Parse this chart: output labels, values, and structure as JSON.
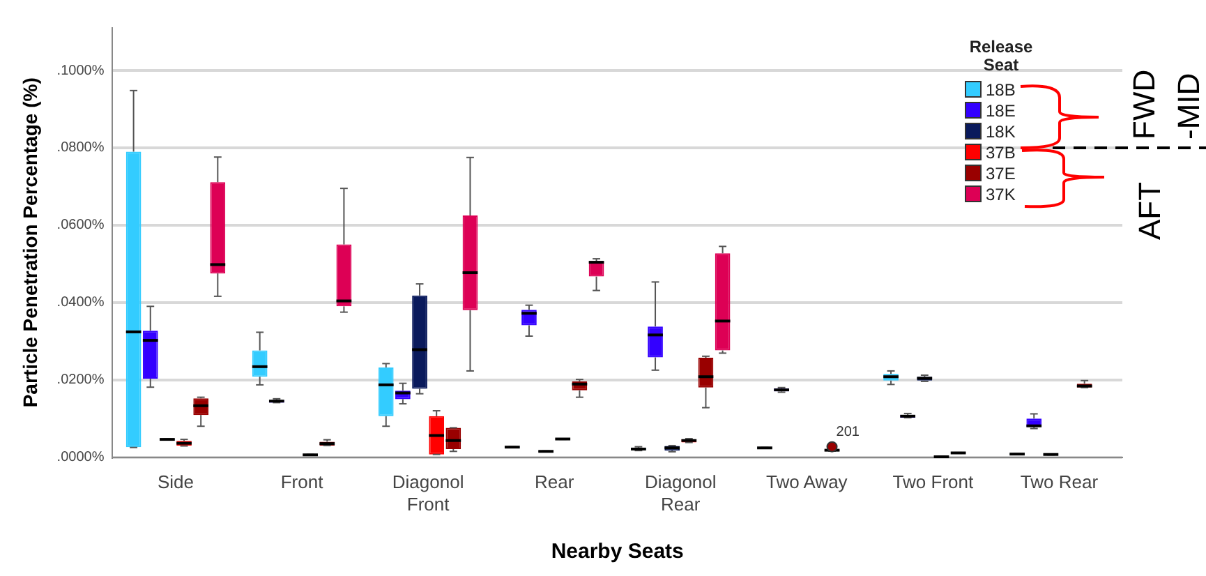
{
  "chart_data": {
    "type": "box",
    "xlabel": "Nearby Seats",
    "ylabel": "Particle Penetration Percentage (%)",
    "legend_title": "Release Seat",
    "legend": "top right",
    "grid": "y",
    "categories": [
      "Side",
      "Front",
      "Diagonol Front",
      "Rear",
      "Diagonol Rear",
      "Two Away",
      "Two Front",
      "Two Rear"
    ],
    "ylim": [
      0,
      0.111
    ],
    "yticks": [
      {
        "value": 0,
        "label": ".0000%"
      },
      {
        "value": 0.02,
        "label": ".0200%"
      },
      {
        "value": 0.04,
        "label": ".0400%"
      },
      {
        "value": 0.06,
        "label": ".0600%"
      },
      {
        "value": 0.08,
        "label": ".0800%"
      },
      {
        "value": 0.1,
        "label": ".1000%"
      }
    ],
    "series": [
      {
        "name": "18B",
        "color": "#33ccff",
        "boxes": [
          {
            "low": 0.0025,
            "q1": 0.0026,
            "median": 0.0324,
            "q3": 0.079,
            "high": 0.0948
          },
          {
            "low": 0.0187,
            "q1": 0.0208,
            "median": 0.0234,
            "q3": 0.0276,
            "high": 0.0323
          },
          {
            "low": 0.008,
            "q1": 0.0106,
            "median": 0.0187,
            "q3": 0.0232,
            "high": 0.0242
          },
          {
            "low": 0.0025,
            "q1": 0.0025,
            "median": 0.0026,
            "q3": 0.0027,
            "high": 0.0027
          },
          {
            "low": 0.0017,
            "q1": 0.0018,
            "median": 0.0021,
            "q3": 0.0024,
            "high": 0.0027
          },
          {
            "low": 0.0023,
            "q1": 0.0023,
            "median": 0.0024,
            "q3": 0.0025,
            "high": 0.0025
          },
          {
            "low": 0.0188,
            "q1": 0.0198,
            "median": 0.0208,
            "q3": 0.0215,
            "high": 0.0223
          },
          {
            "low": 0.0007,
            "q1": 0.0007,
            "median": 0.0008,
            "q3": 0.0009,
            "high": 0.0009
          }
        ]
      },
      {
        "name": "18E",
        "color": "#3300ff",
        "boxes": [
          {
            "low": 0.0181,
            "q1": 0.0203,
            "median": 0.0302,
            "q3": 0.0327,
            "high": 0.039
          },
          {
            "low": 0.0141,
            "q1": 0.0141,
            "median": 0.0145,
            "q3": 0.0147,
            "high": 0.0151
          },
          {
            "low": 0.0138,
            "q1": 0.015,
            "median": 0.0166,
            "q3": 0.0172,
            "high": 0.0191
          },
          {
            "low": 0.0313,
            "q1": 0.0341,
            "median": 0.0372,
            "q3": 0.0381,
            "high": 0.0393
          },
          {
            "low": 0.0225,
            "q1": 0.0258,
            "median": 0.0316,
            "q3": 0.0338,
            "high": 0.0453
          },
          {
            "low": 0.0168,
            "q1": 0.017,
            "median": 0.0174,
            "q3": 0.0178,
            "high": 0.018
          },
          {
            "low": 0.0102,
            "q1": 0.0102,
            "median": 0.0106,
            "q3": 0.0109,
            "high": 0.0113
          },
          {
            "low": 0.0074,
            "q1": 0.0078,
            "median": 0.0081,
            "q3": 0.01,
            "high": 0.0112
          }
        ]
      },
      {
        "name": "18K",
        "color": "#0a1a5c",
        "boxes": [
          {
            "low": 0.0045,
            "q1": 0.0045,
            "median": 0.0046,
            "q3": 0.0047,
            "high": 0.0047
          },
          null,
          {
            "low": 0.0164,
            "q1": 0.0177,
            "median": 0.0278,
            "q3": 0.0418,
            "high": 0.0448
          },
          {
            "low": 0.0014,
            "q1": 0.0014,
            "median": 0.0015,
            "q3": 0.0016,
            "high": 0.0016
          },
          {
            "low": 0.0014,
            "q1": 0.0017,
            "median": 0.0024,
            "q3": 0.0029,
            "high": 0.003
          },
          null,
          {
            "low": 0.0196,
            "q1": 0.0198,
            "median": 0.0204,
            "q3": 0.0208,
            "high": 0.0212
          },
          {
            "low": 0.0006,
            "q1": 0.0006,
            "median": 0.0007,
            "q3": 0.0008,
            "high": 0.0008
          }
        ]
      },
      {
        "name": "37B",
        "color": "#ff0000",
        "boxes": [
          {
            "low": 0.0029,
            "q1": 0.003,
            "median": 0.0036,
            "q3": 0.0042,
            "high": 0.0046
          },
          {
            "low": 0.0005,
            "q1": 0.0005,
            "median": 0.0006,
            "q3": 0.0007,
            "high": 0.0007
          },
          {
            "low": 0.0007,
            "q1": 0.0007,
            "median": 0.0056,
            "q3": 0.0106,
            "high": 0.012
          },
          {
            "low": 0.0046,
            "q1": 0.0046,
            "median": 0.0047,
            "q3": 0.0048,
            "high": 0.0048
          },
          {
            "low": 0.0038,
            "q1": 0.0038,
            "median": 0.0043,
            "q3": 0.0046,
            "high": 0.0048
          },
          null,
          {
            "low": 0.0001,
            "q1": 0.0001,
            "median": 0.0001,
            "q3": 0.0002,
            "high": 0.0002
          },
          null
        ]
      },
      {
        "name": "37E",
        "color": "#990000",
        "boxes": [
          {
            "low": 0.008,
            "q1": 0.0109,
            "median": 0.0133,
            "q3": 0.0152,
            "high": 0.0155
          },
          {
            "low": 0.003,
            "q1": 0.003,
            "median": 0.0035,
            "q3": 0.004,
            "high": 0.0045
          },
          {
            "low": 0.0015,
            "q1": 0.0021,
            "median": 0.0043,
            "q3": 0.0076,
            "high": 0.0076
          },
          {
            "low": 0.0155,
            "q1": 0.0173,
            "median": 0.0189,
            "q3": 0.0196,
            "high": 0.0201
          },
          {
            "low": 0.0128,
            "q1": 0.018,
            "median": 0.0208,
            "q3": 0.0257,
            "high": 0.0261
          },
          {
            "low": 0.0016,
            "q1": 0.0016,
            "median": 0.0018,
            "q3": 0.002,
            "high": 0.002,
            "outliers": [
              0.0027
            ]
          },
          {
            "low": 0.001,
            "q1": 0.001,
            "median": 0.0011,
            "q3": 0.0012,
            "high": 0.0012
          },
          {
            "low": 0.018,
            "q1": 0.018,
            "median": 0.0184,
            "q3": 0.019,
            "high": 0.0198
          }
        ]
      },
      {
        "name": "37K",
        "color": "#dd0055",
        "boxes": [
          {
            "low": 0.0416,
            "q1": 0.0475,
            "median": 0.0498,
            "q3": 0.0711,
            "high": 0.0776
          },
          {
            "low": 0.0375,
            "q1": 0.039,
            "median": 0.0404,
            "q3": 0.055,
            "high": 0.0695
          },
          {
            "low": 0.0223,
            "q1": 0.038,
            "median": 0.0477,
            "q3": 0.0625,
            "high": 0.0775
          },
          {
            "low": 0.0431,
            "q1": 0.0467,
            "median": 0.0504,
            "q3": 0.0507,
            "high": 0.0513
          },
          {
            "low": 0.0269,
            "q1": 0.0276,
            "median": 0.0352,
            "q3": 0.0527,
            "high": 0.0545
          },
          null,
          null,
          null
        ]
      }
    ],
    "annotations": [
      "201",
      "FWD",
      "-MID",
      "AFT"
    ]
  }
}
